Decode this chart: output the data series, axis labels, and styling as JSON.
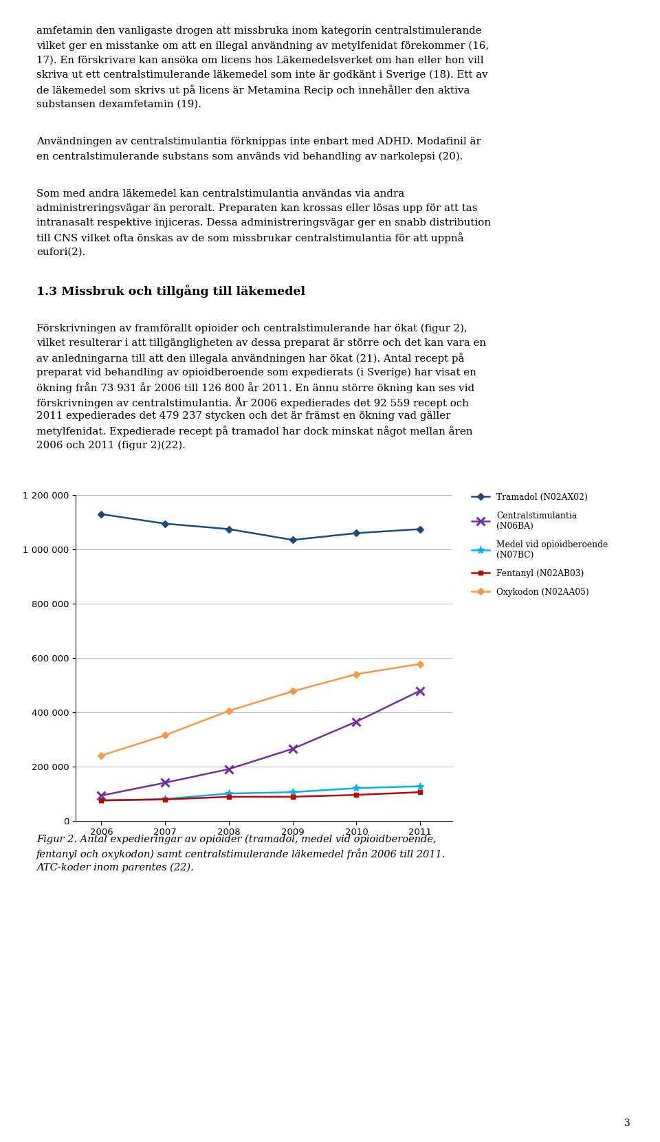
{
  "text_blocks": [
    {
      "text": "amfetamin den vanligaste drogen att missbruka inom kategorin centralstimulerande\nvilket ger en misstanke om att en illegal användning av metylfenidat förekommer (16,\n17). En förskrivare kan ansöka om licens hos Läkemedelsverket om han eller hon vill\nskriva ut ett centralstimulerande läkemedel som inte är godkänt i Sverige (18). Ett av\nde läkemedel som skrivs ut på licens är Metamina Recip och innehåller den aktiva\nsubstansen dexamfetamin (19).",
      "style": "normal",
      "fontsize": 11.5
    },
    {
      "text": "Användningen av centralstimulantia förknippas inte enbart med ADHD. Modafinil är\nen centralstimulerande substans som används vid behandling av narkolepsi (20).",
      "style": "normal",
      "fontsize": 11.5
    },
    {
      "text": "Som med andra läkemedel kan centralstimulantia användas via andra\nadministreringsvägar än peroralt. Preparaten kan krossas eller lösas upp för att tas\nintranasalt respektive injiceras. Dessa administreringsvägar ger en snabb distribution\ntill CNS vilket ofta önskas av de som missbrukar centralstimulantia för att uppnå\neufori(2).",
      "style": "normal",
      "fontsize": 11.5
    },
    {
      "text": "1.3 Missbruk och tillgång till läkemedel",
      "style": "bold",
      "fontsize": 13.0
    },
    {
      "text": "Förskrivningen av framförallt opioider och centralstimulerande har ökat (figur 2),\nvilket resulterar i att tillgängligheten av dessa preparat är större och det kan vara en\nav anledningarna till att den illegala användningen har ökat (21). Antal recept på\npreparat vid behandling av opioidberoende som expedierats (i Sverige) har visat en\nökning från 73 931 år 2006 till 126 800 år 2011. En ännu större ökning kan ses vid\nförskrivningen av centralstimulantia. År 2006 expedierades det 92 559 recept och\n2011 expedierades det 479 237 stycken och det är främst en ökning vad gäller\nmetylfenidat. Expedierade recept på tramadol har dock minskat något mellan åren\n2006 och 2011 (figur 2)(22).",
      "style": "normal",
      "fontsize": 11.5
    }
  ],
  "chart": {
    "years": [
      2006,
      2007,
      2008,
      2009,
      2010,
      2011
    ],
    "tramadol": [
      1130000,
      1095000,
      1075000,
      1035000,
      1060000,
      1075000
    ],
    "centralstimulantia": [
      92559,
      140000,
      190000,
      265000,
      365000,
      479237
    ],
    "opioidberoende": [
      73931,
      80000,
      100000,
      105000,
      120000,
      126800
    ],
    "fentanyl": [
      75000,
      78000,
      88000,
      88000,
      95000,
      105000
    ],
    "oxykodon": [
      240000,
      315000,
      405000,
      477000,
      540000,
      578000
    ],
    "tramadol_color": "#1f497d",
    "centralstimulantia_color": "#7030a0",
    "opioidberoende_color": "#00b0f0",
    "fentanyl_color": "#c00000",
    "oxykodon_color": "#f79646",
    "ylim": [
      0,
      1200000
    ],
    "yticks": [
      0,
      200000,
      400000,
      600000,
      800000,
      1000000,
      1200000
    ]
  },
  "caption_line1": "Figur 2. Antal expedieringar av opioider (tramadol, medel vid opioidberoende,",
  "caption_line2": "fentanyl och oxykodon) samt centralstimulerande läkemedel från 2006 till 2011.",
  "caption_line3": "ATC-koder inom parentes (22).",
  "bg_color": "#ffffff",
  "text_color": "#000000",
  "page_number": "3"
}
